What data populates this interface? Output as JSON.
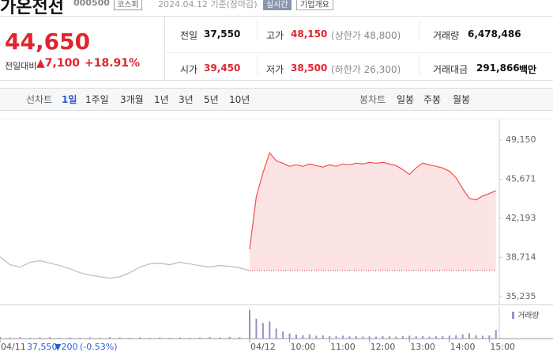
{
  "header": {
    "name": "가온전선",
    "code": "000500",
    "market": "코스피",
    "date": "2024.04.12 기준(장마감)",
    "realtime": "실시간",
    "company_info": "기업개요"
  },
  "quote": {
    "price": "44,650",
    "change_label": "전일대비",
    "change": "▲7,100",
    "change_pct": "+18.91%",
    "stats": [
      {
        "label": "전일",
        "value": "37,550"
      },
      {
        "label": "고가",
        "value": "48,150",
        "extra": "(상한가 48,800)"
      },
      {
        "label": "거래량",
        "value": "6,478,486"
      },
      {
        "label": "시가",
        "value": "39,450"
      },
      {
        "label": "저가",
        "value": "38,500",
        "extra": "(하한가 26,300)"
      },
      {
        "label": "거래대금",
        "value": "291,866",
        "unit": "백만"
      }
    ]
  },
  "tabs": {
    "line_label": "선차트",
    "line": [
      "1일",
      "1주일",
      "3개월",
      "1년",
      "3년",
      "5년",
      "10년"
    ],
    "candle_label": "봉차트",
    "candle": [
      "일봉",
      "주봉",
      "월봉"
    ]
  },
  "chart_data": {
    "type": "line",
    "xlim": [
      15,
      765
    ],
    "xticks": [
      {
        "value": 15,
        "label": "04/11"
      },
      {
        "value": 390,
        "label": "04/12"
      },
      {
        "value": 450,
        "label": "10:00"
      },
      {
        "value": 510,
        "label": "11:00"
      },
      {
        "value": 570,
        "label": "12:00"
      },
      {
        "value": 630,
        "label": "13:00"
      },
      {
        "value": 690,
        "label": "14:00"
      },
      {
        "value": 750,
        "label": "15:00"
      }
    ],
    "ylim": [
      35235,
      49150
    ],
    "yticks": [
      {
        "value": 35235,
        "label": "35,235"
      },
      {
        "value": 38714,
        "label": "38,714"
      },
      {
        "value": 42193,
        "label": "42,193"
      },
      {
        "value": 45671,
        "label": "45,671"
      },
      {
        "value": 49150,
        "label": "49,150"
      }
    ],
    "reference_line": 37550,
    "series": [
      {
        "color": "#bbbbbb",
        "x": [
          15,
          30,
          45,
          60,
          75,
          90,
          105,
          120,
          135,
          150,
          165,
          180,
          195,
          210,
          225,
          240,
          255,
          270,
          285,
          300,
          315,
          330,
          345,
          360,
          375,
          390
        ],
        "values": [
          38785,
          38075,
          37860,
          38290,
          38430,
          38215,
          38000,
          37720,
          37365,
          37150,
          37010,
          36870,
          37010,
          37365,
          37860,
          38145,
          38215,
          38075,
          38290,
          38145,
          38000,
          37860,
          38000,
          37930,
          37790,
          37550
        ],
        "volume": [
          6,
          4,
          5,
          3,
          4,
          5,
          3,
          4,
          3,
          4,
          3,
          5,
          4,
          3,
          4,
          3,
          4,
          3,
          4,
          3,
          4,
          5,
          4,
          6,
          5,
          7
        ]
      },
      {
        "color": "#f24d4d",
        "fill": "#fde4e4",
        "x": [
          390,
          400,
          410,
          420,
          430,
          440,
          450,
          460,
          470,
          480,
          490,
          500,
          510,
          520,
          530,
          540,
          550,
          560,
          570,
          580,
          590,
          600,
          610,
          620,
          630,
          640,
          650,
          660,
          670,
          680,
          690,
          700,
          710,
          720,
          730,
          740,
          750,
          760
        ],
        "values": [
          39450,
          44110,
          46240,
          48015,
          47305,
          47090,
          46810,
          46950,
          46810,
          47020,
          46880,
          46740,
          46950,
          46810,
          47020,
          46950,
          47090,
          47020,
          47165,
          47090,
          47165,
          47020,
          46880,
          46525,
          46100,
          46670,
          47090,
          46950,
          46810,
          46670,
          46380,
          45815,
          44820,
          43970,
          43830,
          44180,
          44390,
          44650
        ],
        "volume": [
          100,
          70,
          55,
          60,
          35,
          25,
          18,
          14,
          12,
          15,
          10,
          11,
          9,
          8,
          10,
          8,
          9,
          7,
          8,
          7,
          9,
          8,
          7,
          9,
          10,
          8,
          9,
          7,
          8,
          9,
          10,
          12,
          15,
          18,
          12,
          10,
          11,
          30
        ]
      }
    ],
    "volume_color": "#9b8ec9",
    "vlim": [
      0,
      100
    ],
    "volume_label": "거래량",
    "footer": {
      "price": "37,550",
      "change": "▼200",
      "pct": "(-0.53%)"
    }
  }
}
